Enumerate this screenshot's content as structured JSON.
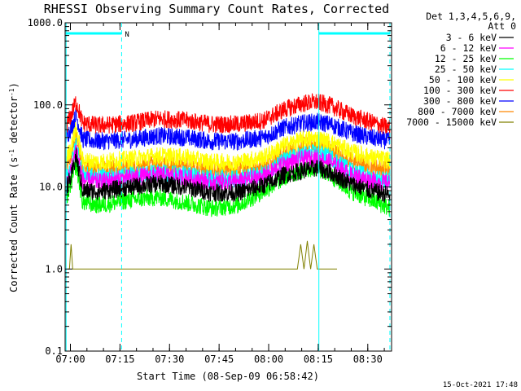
{
  "chart_data": {
    "type": "line",
    "title": "RHESSI Observing Summary Count Rates, Corrected",
    "xlabel": "Start Time (08-Sep-09 06:58:42)",
    "ylabel_main": "Corrected Count Rate (s",
    "ylabel_sup1": "-1",
    "ylabel_mid": " detector",
    "ylabel_sup2": "-1",
    "ylabel_end": ")",
    "y_scale": "log",
    "ylim": [
      0.1,
      1000
    ],
    "xlim_minutes": [
      -0.3,
      98.5
    ],
    "x_ticks": [
      {
        "minutes": 1.3,
        "label": "07:00"
      },
      {
        "minutes": 16.3,
        "label": "07:15"
      },
      {
        "minutes": 31.3,
        "label": "07:30"
      },
      {
        "minutes": 46.3,
        "label": "07:45"
      },
      {
        "minutes": 61.3,
        "label": "08:00"
      },
      {
        "minutes": 76.3,
        "label": "08:15"
      },
      {
        "minutes": 91.3,
        "label": "08:30"
      }
    ],
    "y_ticks": [
      {
        "value": 1000,
        "label": "1000.0"
      },
      {
        "value": 100,
        "label": "100.0"
      },
      {
        "value": 10,
        "label": "10.0"
      },
      {
        "value": 1,
        "label": "1.0"
      },
      {
        "value": 0.1,
        "label": "0.1"
      }
    ],
    "legend_header": [
      "Det 1,3,4,5,6,9,",
      "Att 0"
    ],
    "legend_position": "right",
    "series": [
      {
        "name": "3 - 6 keV",
        "color": "#000000",
        "knots": [
          [
            0,
            10
          ],
          [
            1.5,
            13
          ],
          [
            3,
            24
          ],
          [
            5,
            9
          ],
          [
            10,
            8.8
          ],
          [
            20,
            10
          ],
          [
            28,
            11
          ],
          [
            36,
            10
          ],
          [
            44,
            8.5
          ],
          [
            52,
            8.5
          ],
          [
            60,
            10.5
          ],
          [
            66,
            14
          ],
          [
            72,
            16
          ],
          [
            76,
            17
          ],
          [
            80,
            15
          ],
          [
            86,
            11
          ],
          [
            92,
            9
          ],
          [
            98,
            8
          ]
        ]
      },
      {
        "name": "6 - 12 keV",
        "color": "#ff00ff",
        "knots": [
          [
            0,
            11
          ],
          [
            1.5,
            16
          ],
          [
            3,
            30
          ],
          [
            5,
            12
          ],
          [
            10,
            11.5
          ],
          [
            20,
            13
          ],
          [
            28,
            14
          ],
          [
            36,
            13
          ],
          [
            44,
            11.5
          ],
          [
            52,
            11.5
          ],
          [
            60,
            13.5
          ],
          [
            66,
            19
          ],
          [
            72,
            22
          ],
          [
            76,
            22.5
          ],
          [
            80,
            20
          ],
          [
            86,
            14
          ],
          [
            92,
            12
          ],
          [
            98,
            11
          ]
        ]
      },
      {
        "name": "12 - 25 keV",
        "color": "#00ff00",
        "knots": [
          [
            0,
            7
          ],
          [
            1.5,
            11
          ],
          [
            3,
            19
          ],
          [
            5,
            6.5
          ],
          [
            10,
            6
          ],
          [
            20,
            7
          ],
          [
            28,
            7.5
          ],
          [
            36,
            6.5
          ],
          [
            44,
            5.5
          ],
          [
            52,
            6
          ],
          [
            60,
            9
          ],
          [
            66,
            13
          ],
          [
            72,
            16.5
          ],
          [
            76,
            17
          ],
          [
            80,
            14
          ],
          [
            86,
            9
          ],
          [
            92,
            7
          ],
          [
            98,
            5.5
          ]
        ]
      },
      {
        "name": "25 - 50 keV",
        "color": "#00ffff",
        "knots": [
          [
            0,
            13
          ],
          [
            1.5,
            18
          ],
          [
            3,
            34
          ],
          [
            5,
            14
          ],
          [
            10,
            13
          ],
          [
            20,
            14
          ],
          [
            28,
            15
          ],
          [
            36,
            14
          ],
          [
            44,
            12.5
          ],
          [
            52,
            12.5
          ],
          [
            60,
            14.5
          ],
          [
            66,
            21
          ],
          [
            72,
            25
          ],
          [
            76,
            26
          ],
          [
            80,
            23
          ],
          [
            86,
            16
          ],
          [
            92,
            13
          ],
          [
            98,
            12
          ]
        ]
      },
      {
        "name": "50 - 100 keV",
        "color": "#ffff00",
        "knots": [
          [
            0,
            22
          ],
          [
            1.5,
            30
          ],
          [
            3,
            52
          ],
          [
            5,
            21
          ],
          [
            10,
            20
          ],
          [
            20,
            22
          ],
          [
            28,
            24
          ],
          [
            36,
            23
          ],
          [
            44,
            20
          ],
          [
            52,
            20
          ],
          [
            60,
            23
          ],
          [
            66,
            32
          ],
          [
            72,
            38
          ],
          [
            76,
            39
          ],
          [
            80,
            35
          ],
          [
            86,
            27
          ],
          [
            92,
            23
          ],
          [
            98,
            21
          ]
        ]
      },
      {
        "name": "100 - 300 keV",
        "color": "#ff0000",
        "knots": [
          [
            0,
            55
          ],
          [
            1.5,
            75
          ],
          [
            3,
            110
          ],
          [
            5,
            60
          ],
          [
            10,
            56
          ],
          [
            20,
            60
          ],
          [
            28,
            68
          ],
          [
            36,
            65
          ],
          [
            44,
            58
          ],
          [
            52,
            58
          ],
          [
            60,
            65
          ],
          [
            66,
            88
          ],
          [
            72,
            105
          ],
          [
            76,
            108
          ],
          [
            80,
            98
          ],
          [
            86,
            75
          ],
          [
            92,
            62
          ],
          [
            98,
            52
          ]
        ]
      },
      {
        "name": "300 - 800 keV",
        "color": "#0000ff",
        "knots": [
          [
            0,
            40
          ],
          [
            1.5,
            52
          ],
          [
            3,
            75
          ],
          [
            5,
            38
          ],
          [
            10,
            36
          ],
          [
            20,
            38
          ],
          [
            28,
            42
          ],
          [
            36,
            40
          ],
          [
            44,
            36
          ],
          [
            52,
            36
          ],
          [
            60,
            40
          ],
          [
            66,
            53
          ],
          [
            72,
            60
          ],
          [
            76,
            62
          ],
          [
            80,
            58
          ],
          [
            86,
            46
          ],
          [
            92,
            40
          ],
          [
            98,
            36
          ]
        ]
      },
      {
        "name": "800 - 7000 keV",
        "color": "#ff8800",
        "knots": [
          [
            0,
            17
          ],
          [
            1.5,
            24
          ],
          [
            3,
            42
          ],
          [
            5,
            17
          ],
          [
            10,
            16
          ],
          [
            20,
            17.5
          ],
          [
            28,
            19
          ],
          [
            36,
            18
          ],
          [
            44,
            16
          ],
          [
            52,
            16
          ],
          [
            60,
            18.5
          ],
          [
            66,
            26
          ],
          [
            72,
            32
          ],
          [
            76,
            33
          ],
          [
            80,
            29
          ],
          [
            86,
            21
          ],
          [
            92,
            18
          ],
          [
            98,
            16
          ]
        ]
      },
      {
        "name": "7000 - 15000 keV",
        "color": "#808000",
        "knots": [
          [
            0.5,
            1
          ],
          [
            1,
            1
          ],
          [
            1.5,
            2
          ],
          [
            2,
            1
          ],
          [
            3,
            1
          ],
          [
            60,
            1
          ],
          [
            70,
            1
          ],
          [
            71,
            2
          ],
          [
            72,
            1
          ],
          [
            73,
            2.2
          ],
          [
            74,
            1
          ],
          [
            75,
            2
          ],
          [
            76,
            1
          ],
          [
            82,
            1
          ]
        ]
      }
    ],
    "segments_top": [
      {
        "x1": 0,
        "x2": 16.8,
        "color": "#00ffff",
        "label": "N"
      },
      {
        "x1": 76.5,
        "x2": 98,
        "color": "#00ffff",
        "label": ""
      }
    ],
    "vlines": [
      {
        "x": 0,
        "style": "solid",
        "color": "#00ffff"
      },
      {
        "x": 16.8,
        "style": "dashed",
        "color": "#00ffff"
      },
      {
        "x": 76.5,
        "style": "solid",
        "color": "#00ffff"
      },
      {
        "x": 98,
        "style": "dashed",
        "color": "#00ffff"
      }
    ],
    "footer_date": "15-Oct-2021 17:48"
  }
}
